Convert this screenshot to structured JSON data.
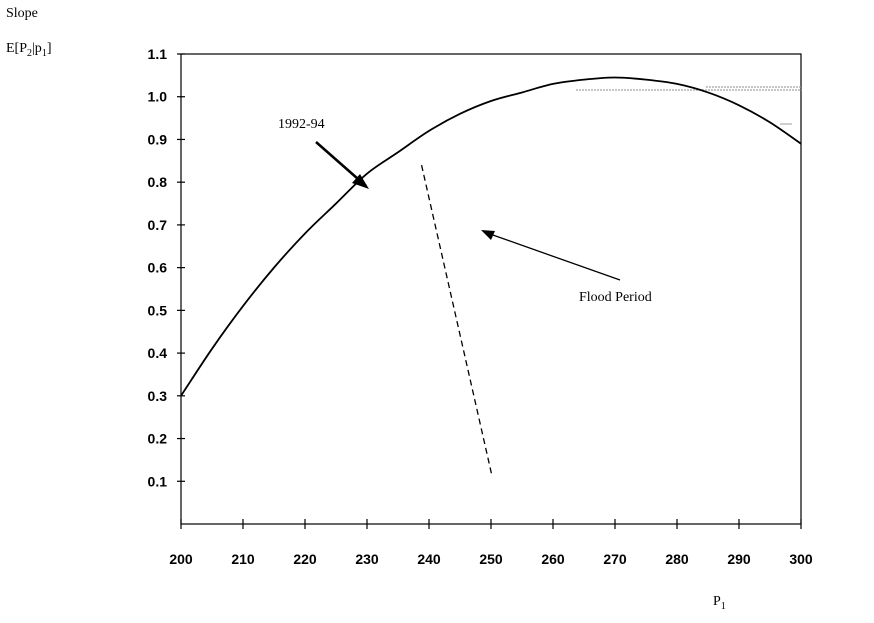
{
  "chart_data": {
    "type": "line",
    "ylabel_line1": "Slope",
    "ylabel_line2_main": "E[P",
    "ylabel_line2_sub1": "2",
    "ylabel_line2_mid": "|p",
    "ylabel_line2_sub2": "1",
    "ylabel_line2_end": "]",
    "xlabel_main": "P",
    "xlabel_sub": "1",
    "xlim": [
      200,
      300
    ],
    "ylim": [
      0,
      1.1
    ],
    "x_ticks": [
      200,
      210,
      220,
      230,
      240,
      250,
      260,
      270,
      280,
      290,
      300
    ],
    "y_ticks": [
      0.1,
      0.2,
      0.3,
      0.4,
      0.5,
      0.6,
      0.7,
      0.8,
      0.9,
      1.0,
      1.1
    ],
    "y_tick_labels": [
      "0.1",
      "0.2",
      "0.3",
      "0.4",
      "0.5",
      "0.6",
      "0.7",
      "0.8",
      "0.9",
      "1.0",
      "1.1"
    ],
    "series": [
      {
        "name": "1992-94",
        "style": "solid",
        "color": "#000000",
        "x": [
          200,
          205,
          210,
          215,
          220,
          225,
          230,
          235,
          240,
          245,
          250,
          255,
          260,
          265,
          270,
          275,
          280,
          285,
          290,
          295,
          300
        ],
        "y": [
          0.3,
          0.41,
          0.51,
          0.6,
          0.68,
          0.75,
          0.82,
          0.87,
          0.92,
          0.96,
          0.99,
          1.01,
          1.03,
          1.04,
          1.045,
          1.04,
          1.03,
          1.01,
          0.98,
          0.94,
          0.89
        ]
      },
      {
        "name": "Flood Period",
        "style": "dashed",
        "color": "#000000",
        "x": [
          238.8,
          250.2
        ],
        "y": [
          0.84,
          0.11
        ]
      }
    ],
    "annotations": [
      {
        "text": "1992-94",
        "target": [
          229,
          0.81
        ]
      },
      {
        "text": "Flood Period",
        "target": [
          243,
          0.69
        ]
      }
    ]
  }
}
